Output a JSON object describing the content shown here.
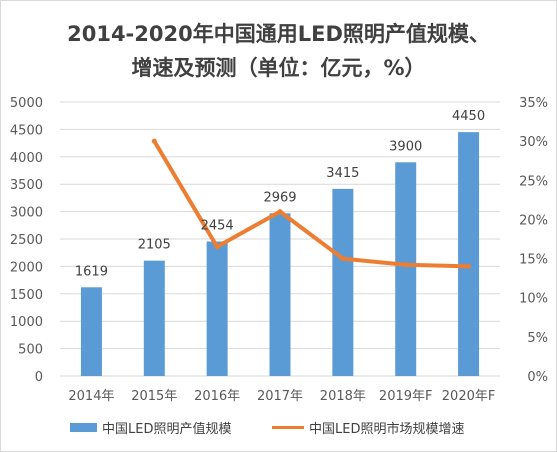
{
  "title_line1": "2014-2020年中国通用LED照明产值规模、",
  "title_line2": "增速及预测（单位：亿元，%）",
  "colors": {
    "bar": "#5b9bd5",
    "line": "#ed7d31",
    "grid": "#d9d9d9"
  },
  "chart_data": {
    "type": "bar",
    "categories": [
      "2014年",
      "2015年",
      "2016年",
      "2017年",
      "2018年",
      "2019年F",
      "2020年F"
    ],
    "series": [
      {
        "name": "中国LED照明产值规模",
        "type": "bar",
        "axis": "left",
        "values": [
          1619,
          2105,
          2454,
          2969,
          3415,
          3900,
          4450
        ]
      },
      {
        "name": "中国LED照明市场规模增速",
        "type": "line",
        "axis": "right",
        "values": [
          null,
          30,
          16.5,
          21,
          15,
          14.2,
          14
        ]
      }
    ],
    "y_left": {
      "min": 0,
      "max": 5000,
      "step": 500,
      "ticks": [
        "0",
        "500",
        "1000",
        "1500",
        "2000",
        "2500",
        "3000",
        "3500",
        "4000",
        "4500",
        "5000"
      ]
    },
    "y_right": {
      "min": 0,
      "max": 35,
      "step": 5,
      "ticks": [
        "0%",
        "5%",
        "10%",
        "15%",
        "20%",
        "25%",
        "30%",
        "35%"
      ]
    },
    "data_labels": [
      "1619",
      "2105",
      "2454",
      "2969",
      "3415",
      "3900",
      "4450"
    ],
    "grid": true,
    "legend_position": "bottom"
  }
}
